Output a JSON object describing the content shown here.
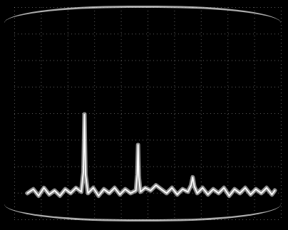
{
  "chart_data": {
    "type": "line",
    "color": "#ffffff",
    "grid": true,
    "tick_labels": false,
    "xlim": [
      0,
      10
    ],
    "xticks": [
      0,
      1,
      2,
      3,
      4,
      5,
      6,
      7,
      8,
      9,
      10
    ],
    "ylim": [
      0,
      8
    ],
    "yticks": [
      0,
      1,
      2,
      3,
      4,
      5,
      6,
      7,
      8
    ],
    "x": [
      0.48,
      0.7,
      0.9,
      1.1,
      1.3,
      1.5,
      1.7,
      1.9,
      2.1,
      2.3,
      2.5,
      2.58,
      2.62,
      2.66,
      2.75,
      2.95,
      3.15,
      3.35,
      3.55,
      3.75,
      3.95,
      4.15,
      4.35,
      4.55,
      4.6,
      4.63,
      4.66,
      4.72,
      4.9,
      5.1,
      5.3,
      5.5,
      5.7,
      5.9,
      6.1,
      6.3,
      6.5,
      6.62,
      6.68,
      6.74,
      6.85,
      7.05,
      7.25,
      7.45,
      7.65,
      7.85,
      8.05,
      8.25,
      8.45,
      8.65,
      8.85,
      9.05,
      9.25,
      9.45,
      9.65,
      9.76
    ],
    "values": [
      1.0,
      1.15,
      0.9,
      1.2,
      0.95,
      1.1,
      0.9,
      1.15,
      1.0,
      1.2,
      1.05,
      1.8,
      3.97,
      1.7,
      1.0,
      1.2,
      0.9,
      1.15,
      1.0,
      1.2,
      0.95,
      1.15,
      1.0,
      1.1,
      1.7,
      2.82,
      1.6,
      1.05,
      1.2,
      1.1,
      1.3,
      1.15,
      1.0,
      1.2,
      0.95,
      1.15,
      1.05,
      1.3,
      1.6,
      1.25,
      1.0,
      1.2,
      0.95,
      1.15,
      1.0,
      1.2,
      0.9,
      1.15,
      1.0,
      1.2,
      0.95,
      1.15,
      1.0,
      1.2,
      0.95,
      1.1
    ]
  }
}
